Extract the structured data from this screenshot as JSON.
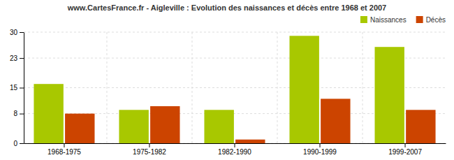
{
  "chart_data": {
    "type": "bar",
    "title": "www.CartesFrance.fr - Aigleville : Evolution des naissances et décès entre 1968 et 2007",
    "categories": [
      "1968-1975",
      "1975-1982",
      "1982-1990",
      "1990-1999",
      "1999-2007"
    ],
    "series": [
      {
        "name": "Naissances",
        "color": "#a8c800",
        "values": [
          16,
          9,
          9,
          29,
          26
        ]
      },
      {
        "name": "Décès",
        "color": "#cc4400",
        "values": [
          8,
          10,
          1,
          12,
          9
        ]
      }
    ],
    "ylim": [
      0,
      30
    ],
    "yticks": [
      0,
      8,
      15,
      23,
      30
    ],
    "grid": true,
    "legend": "upper right"
  }
}
